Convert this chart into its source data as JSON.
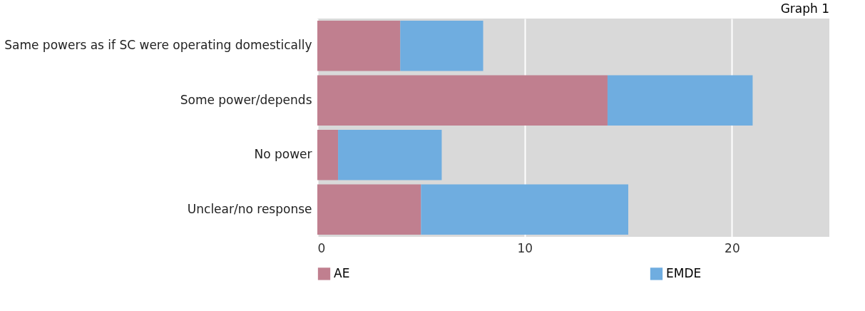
{
  "chart_data": {
    "type": "bar",
    "orientation": "horizontal",
    "stacked": true,
    "title": "Graph 1",
    "categories": [
      "Same powers as if SC were operating domestically",
      "Some power/depends",
      "No power",
      "Unclear/no response"
    ],
    "series": [
      {
        "name": "AE",
        "color": "#c07f8f",
        "values": [
          4,
          14,
          1,
          5
        ]
      },
      {
        "name": "EMDE",
        "color": "#6fade0",
        "values": [
          4,
          7,
          5,
          10
        ]
      }
    ],
    "xlim": [
      0,
      24.7
    ],
    "xticks": [
      0,
      10,
      20
    ],
    "grid": "x",
    "legend": "bottom"
  }
}
